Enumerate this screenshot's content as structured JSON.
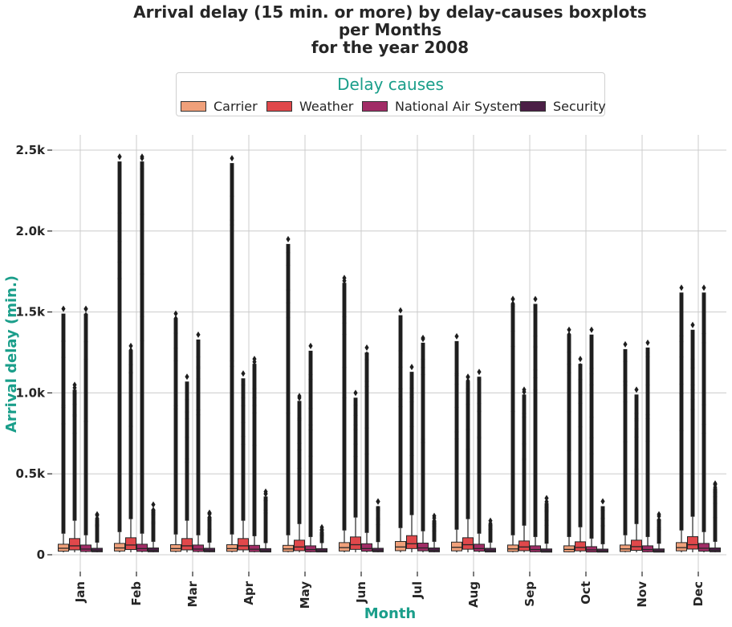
{
  "title": {
    "line1": "Arrival delay (15 min. or more) by delay-causes boxplots",
    "line2": "per Months",
    "line3": "for the year 2008"
  },
  "legend": {
    "title": "Delay causes",
    "items": [
      {
        "label": "Carrier",
        "color": "#f0a07a"
      },
      {
        "label": "Weather",
        "color": "#e0484b"
      },
      {
        "label": "National Air System",
        "color": "#a12c66"
      },
      {
        "label": "Security",
        "color": "#4b1f46"
      }
    ]
  },
  "chart_data": {
    "type": "boxplot",
    "xlabel": "Month",
    "ylabel": "Arrival delay (min.)",
    "ylim": [
      -60,
      2600
    ],
    "yticks": [
      0,
      500,
      1000,
      1500,
      2000,
      2500
    ],
    "ytick_labels": [
      "0",
      "0.5k",
      "1.0k",
      "1.5k",
      "2.0k",
      "2.5k"
    ],
    "grid": true,
    "legend_position": "top-center",
    "categories": [
      "Jan",
      "Feb",
      "Mar",
      "Apr",
      "May",
      "Jun",
      "Jul",
      "Aug",
      "Sep",
      "Oct",
      "Nov",
      "Dec"
    ],
    "series": [
      {
        "name": "Carrier",
        "color": "#f0a07a",
        "q1": [
          22,
          23,
          21,
          21,
          20,
          23,
          25,
          24,
          20,
          18,
          20,
          24
        ],
        "median": [
          40,
          42,
          38,
          38,
          36,
          44,
          48,
          46,
          36,
          33,
          36,
          44
        ],
        "q3": [
          65,
          70,
          62,
          62,
          58,
          75,
          82,
          78,
          60,
          55,
          60,
          75
        ],
        "whisker_high": [
          130,
          140,
          125,
          125,
          120,
          150,
          165,
          155,
          120,
          110,
          120,
          150
        ],
        "outlier_max": [
          1520,
          2460,
          1490,
          2450,
          1950,
          1710,
          1510,
          1350,
          1580,
          1390,
          1300,
          1650
        ]
      },
      {
        "name": "Weather",
        "color": "#e0484b",
        "q1": [
          30,
          32,
          30,
          30,
          25,
          33,
          38,
          34,
          25,
          24,
          27,
          35
        ],
        "median": [
          55,
          60,
          55,
          55,
          48,
          62,
          68,
          62,
          48,
          45,
          50,
          62
        ],
        "q3": [
          100,
          105,
          100,
          100,
          90,
          110,
          118,
          105,
          85,
          80,
          90,
          112
        ],
        "whisker_high": [
          210,
          220,
          210,
          210,
          190,
          230,
          245,
          220,
          180,
          170,
          190,
          235
        ],
        "outlier_max": [
          1050,
          1290,
          1100,
          1120,
          980,
          1000,
          1160,
          1100,
          1020,
          1210,
          1020,
          1420
        ]
      },
      {
        "name": "National Air System",
        "color": "#a12c66",
        "q1": [
          20,
          21,
          20,
          19,
          18,
          22,
          24,
          22,
          18,
          17,
          18,
          22
        ],
        "median": [
          35,
          38,
          35,
          34,
          32,
          38,
          42,
          38,
          32,
          30,
          32,
          40
        ],
        "q3": [
          60,
          65,
          60,
          58,
          55,
          68,
          72,
          65,
          55,
          50,
          55,
          70
        ],
        "whisker_high": [
          120,
          130,
          120,
          115,
          110,
          135,
          145,
          130,
          110,
          100,
          110,
          140
        ],
        "outlier_max": [
          1520,
          2460,
          1360,
          1210,
          1290,
          1280,
          1340,
          1130,
          1580,
          1390,
          1310,
          1650
        ]
      },
      {
        "name": "Security",
        "color": "#4b1f46",
        "q1": [
          18,
          18,
          18,
          17,
          17,
          18,
          18,
          17,
          16,
          16,
          16,
          18
        ],
        "median": [
          25,
          26,
          25,
          24,
          24,
          25,
          26,
          25,
          23,
          22,
          23,
          26
        ],
        "q3": [
          40,
          42,
          40,
          38,
          38,
          40,
          42,
          40,
          36,
          35,
          36,
          42
        ],
        "whisker_high": [
          75,
          80,
          75,
          72,
          72,
          78,
          80,
          75,
          68,
          65,
          68,
          80
        ],
        "outlier_max": [
          250,
          310,
          260,
          390,
          170,
          330,
          240,
          210,
          350,
          330,
          250,
          440
        ]
      }
    ]
  }
}
